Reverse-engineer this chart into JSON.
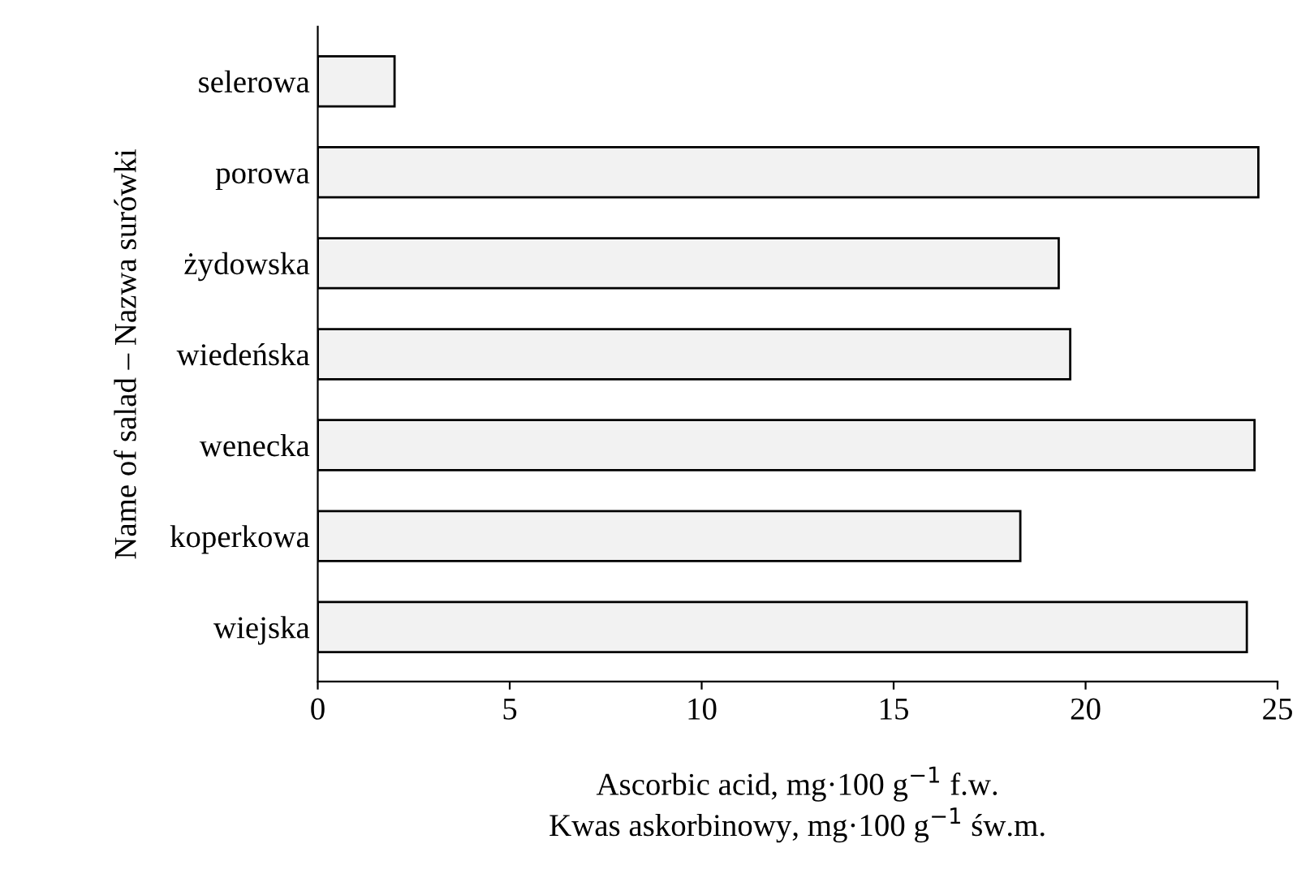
{
  "chart_data": {
    "type": "bar",
    "orientation": "horizontal",
    "categories": [
      "selerowa",
      "porowa",
      "żydowska",
      "wiedeńska",
      "wenecka",
      "koperkowa",
      "wiejska"
    ],
    "values": [
      2.0,
      24.5,
      19.3,
      19.6,
      24.4,
      18.3,
      24.2
    ],
    "color": "#f2f2f2",
    "xlim": [
      0,
      25
    ],
    "xticks": [
      0,
      5,
      10,
      15,
      20,
      25
    ],
    "grid": false,
    "legend": false,
    "ylabel": "Name of salad – Nazwa surówki",
    "xlabel": "Ascorbic acid, mg·100 g$^{−1}$ f.w.\nKwas askorbinowy, mg·100 g$^{−1}$ św.m."
  }
}
